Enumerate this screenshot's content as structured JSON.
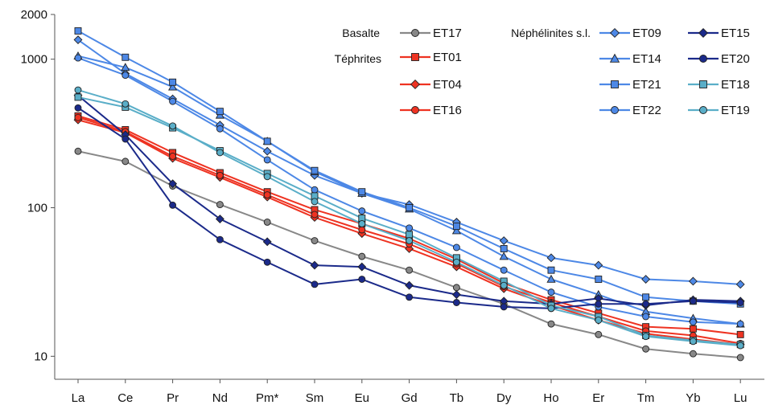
{
  "chart_data": {
    "type": "line",
    "y_scale": "log",
    "ylim": [
      7,
      2000
    ],
    "y_ticks": [
      {
        "value": 2000,
        "label": "2000"
      },
      {
        "value": 1000,
        "label": "1000"
      },
      {
        "value": 100,
        "label": "100"
      },
      {
        "value": 10,
        "label": "10"
      }
    ],
    "categories": [
      "La",
      "Ce",
      "Pr",
      "Nd",
      "Pm*",
      "Sm",
      "Eu",
      "Gd",
      "Tb",
      "Dy",
      "Ho",
      "Er",
      "Tm",
      "Yb",
      "Lu"
    ],
    "grid": false,
    "legend_groups": [
      {
        "label": "Basalte"
      },
      {
        "label": "Téphrites"
      },
      {
        "label": "Néphélinites s.l."
      }
    ],
    "series": [
      {
        "name": "ET17",
        "color": "#888888",
        "marker": "circle",
        "values": [
          240,
          205,
          140,
          105,
          80,
          60,
          47,
          38,
          29,
          22.5,
          16.5,
          14,
          11.2,
          10.4,
          9.8
        ]
      },
      {
        "name": "ET01",
        "color": "#ee3322",
        "marker": "square",
        "values": [
          415,
          335,
          235,
          172,
          128,
          97,
          78,
          62,
          45,
          31,
          24,
          19.5,
          15.8,
          15.3,
          14
        ]
      },
      {
        "name": "ET04",
        "color": "#ee3322",
        "marker": "diamond",
        "values": [
          390,
          320,
          215,
          160,
          118,
          86,
          67,
          53,
          40,
          28.5,
          22,
          17.5,
          14.2,
          13,
          12
        ]
      },
      {
        "name": "ET16",
        "color": "#ee3322",
        "marker": "circle",
        "values": [
          405,
          325,
          222,
          165,
          122,
          90,
          71,
          57,
          42,
          29.5,
          23,
          18.5,
          14.8,
          13.8,
          12.2
        ]
      },
      {
        "name": "ET09",
        "color": "#4d88e6",
        "marker": "diamond",
        "values": [
          1350,
          800,
          540,
          360,
          240,
          165,
          125,
          105,
          80,
          60,
          46,
          41,
          33,
          32,
          30.5
        ]
      },
      {
        "name": "ET14",
        "color": "#4d88e6",
        "marker": "triangle",
        "values": [
          1050,
          880,
          650,
          420,
          280,
          175,
          125,
          98,
          70,
          47,
          33,
          26,
          20,
          18,
          16.5
        ]
      },
      {
        "name": "ET21",
        "color": "#4d88e6",
        "marker": "square",
        "values": [
          1550,
          1030,
          700,
          445,
          280,
          178,
          128,
          100,
          75,
          53,
          38,
          33,
          25,
          23.5,
          22.5
        ]
      },
      {
        "name": "ET22",
        "color": "#4d88e6",
        "marker": "circle",
        "values": [
          1020,
          780,
          520,
          340,
          210,
          132,
          95,
          73,
          54,
          38,
          27,
          21.5,
          18.5,
          17,
          16.5
        ]
      },
      {
        "name": "ET15",
        "color": "#1b2a8a",
        "marker": "diamond",
        "values": [
          570,
          310,
          145,
          84,
          59,
          41,
          40,
          30,
          26,
          23.5,
          22.5,
          24.5,
          22,
          24,
          23.5
        ]
      },
      {
        "name": "ET20",
        "color": "#1b2a8a",
        "marker": "circle",
        "values": [
          470,
          290,
          104,
          61,
          43,
          30.5,
          33,
          25,
          23,
          21.5,
          21,
          22.5,
          22.5,
          23.5,
          23
        ]
      },
      {
        "name": "ET18",
        "color": "#5aaec8",
        "marker": "square",
        "values": [
          555,
          475,
          345,
          242,
          170,
          120,
          85,
          66,
          46,
          32,
          22,
          18.5,
          13.8,
          12.8,
          12
        ]
      },
      {
        "name": "ET19",
        "color": "#5aaec8",
        "marker": "circle",
        "values": [
          620,
          500,
          355,
          235,
          162,
          110,
          78,
          60,
          43,
          30,
          21,
          17.5,
          13.6,
          12.6,
          11.8
        ]
      }
    ]
  }
}
